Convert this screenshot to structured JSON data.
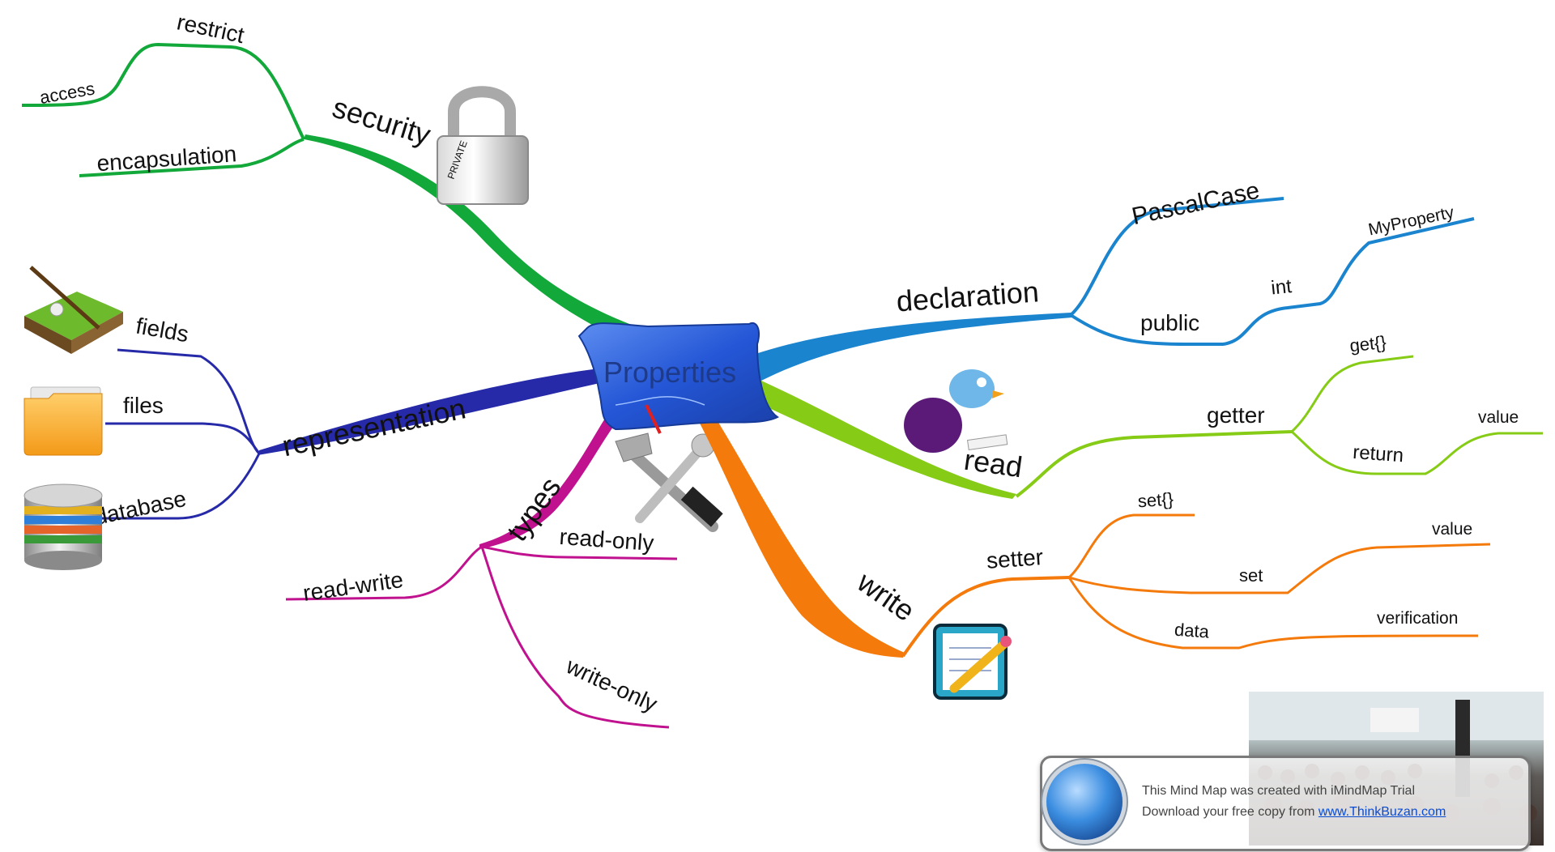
{
  "center": {
    "label": "Properties"
  },
  "branches": {
    "security": {
      "label": "security",
      "color": "#12a83a",
      "children": {
        "restrict": "restrict",
        "access": "access",
        "encapsulation": "encapsulation"
      }
    },
    "representation": {
      "label": "representation",
      "color": "#262aa8",
      "children": {
        "fields": "fields",
        "files": "files",
        "database": "database"
      }
    },
    "types": {
      "label": "types",
      "color": "#c0128f",
      "children": {
        "read_only": "read-only",
        "read_write": "read-write",
        "write_only": "write-only"
      }
    },
    "declaration": {
      "label": "declaration",
      "color": "#1a84cf",
      "children": {
        "pascal_case": "PascalCase",
        "public": "public",
        "int": "int",
        "my_property": "MyProperty"
      }
    },
    "read": {
      "label": "read",
      "color": "#86cc16",
      "children": {
        "getter": "getter",
        "get": "get{}",
        "return": "return",
        "value": "value"
      }
    },
    "write": {
      "label": "write",
      "color": "#f47a0c",
      "children": {
        "setter": "setter",
        "set_braces": "set{}",
        "value": "value",
        "set": "set",
        "data": "data",
        "verification": "verification"
      }
    }
  },
  "icons": {
    "security": "padlock-icon",
    "fields": "grass-field-icon",
    "files": "folder-icon",
    "database": "database-icon",
    "read": "reading-bird-icon",
    "types": "tools-icon",
    "write": "notepad-icon",
    "center": "blueprint-scroll-icon"
  },
  "watermark": {
    "line1": "This Mind Map was created with iMindMap Trial",
    "line2_prefix": "Download your free copy from",
    "link_text": "www.ThinkBuzan.com"
  }
}
